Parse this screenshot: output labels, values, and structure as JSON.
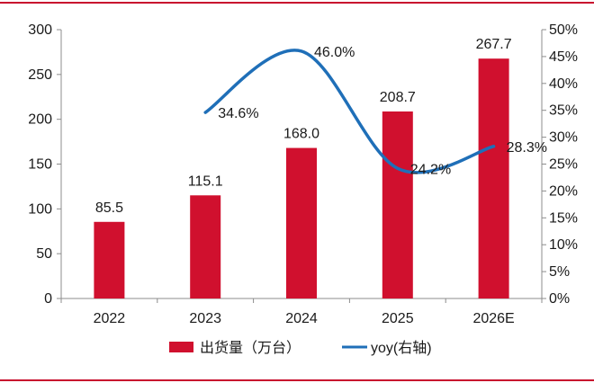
{
  "chart_data": {
    "type": "bar",
    "categories": [
      "2022",
      "2023",
      "2024",
      "2025",
      "2026E"
    ],
    "series": [
      {
        "name": "出货量（万台）",
        "type": "bar",
        "axis": "left",
        "color": "#d0102e",
        "values": [
          85.5,
          115.1,
          168.0,
          208.7,
          267.7
        ],
        "labels": [
          "85.5",
          "115.1",
          "168.0",
          "208.7",
          "267.7"
        ]
      },
      {
        "name": "yoy(右轴)",
        "type": "line",
        "axis": "right",
        "color": "#1f6fb8",
        "values": [
          null,
          0.346,
          0.46,
          0.242,
          0.283
        ],
        "labels": [
          "",
          "34.6%",
          "46.0%",
          "24.2%",
          "28.3%"
        ]
      }
    ],
    "y_left": {
      "min": 0,
      "max": 300,
      "ticks": [
        "0",
        "50",
        "100",
        "150",
        "200",
        "250",
        "300"
      ]
    },
    "y_right": {
      "min": 0,
      "max": 0.5,
      "ticks": [
        "0%",
        "5%",
        "10%",
        "15%",
        "20%",
        "25%",
        "30%",
        "35%",
        "40%",
        "45%",
        "50%"
      ]
    },
    "legend_position": "bottom",
    "grid": false
  }
}
